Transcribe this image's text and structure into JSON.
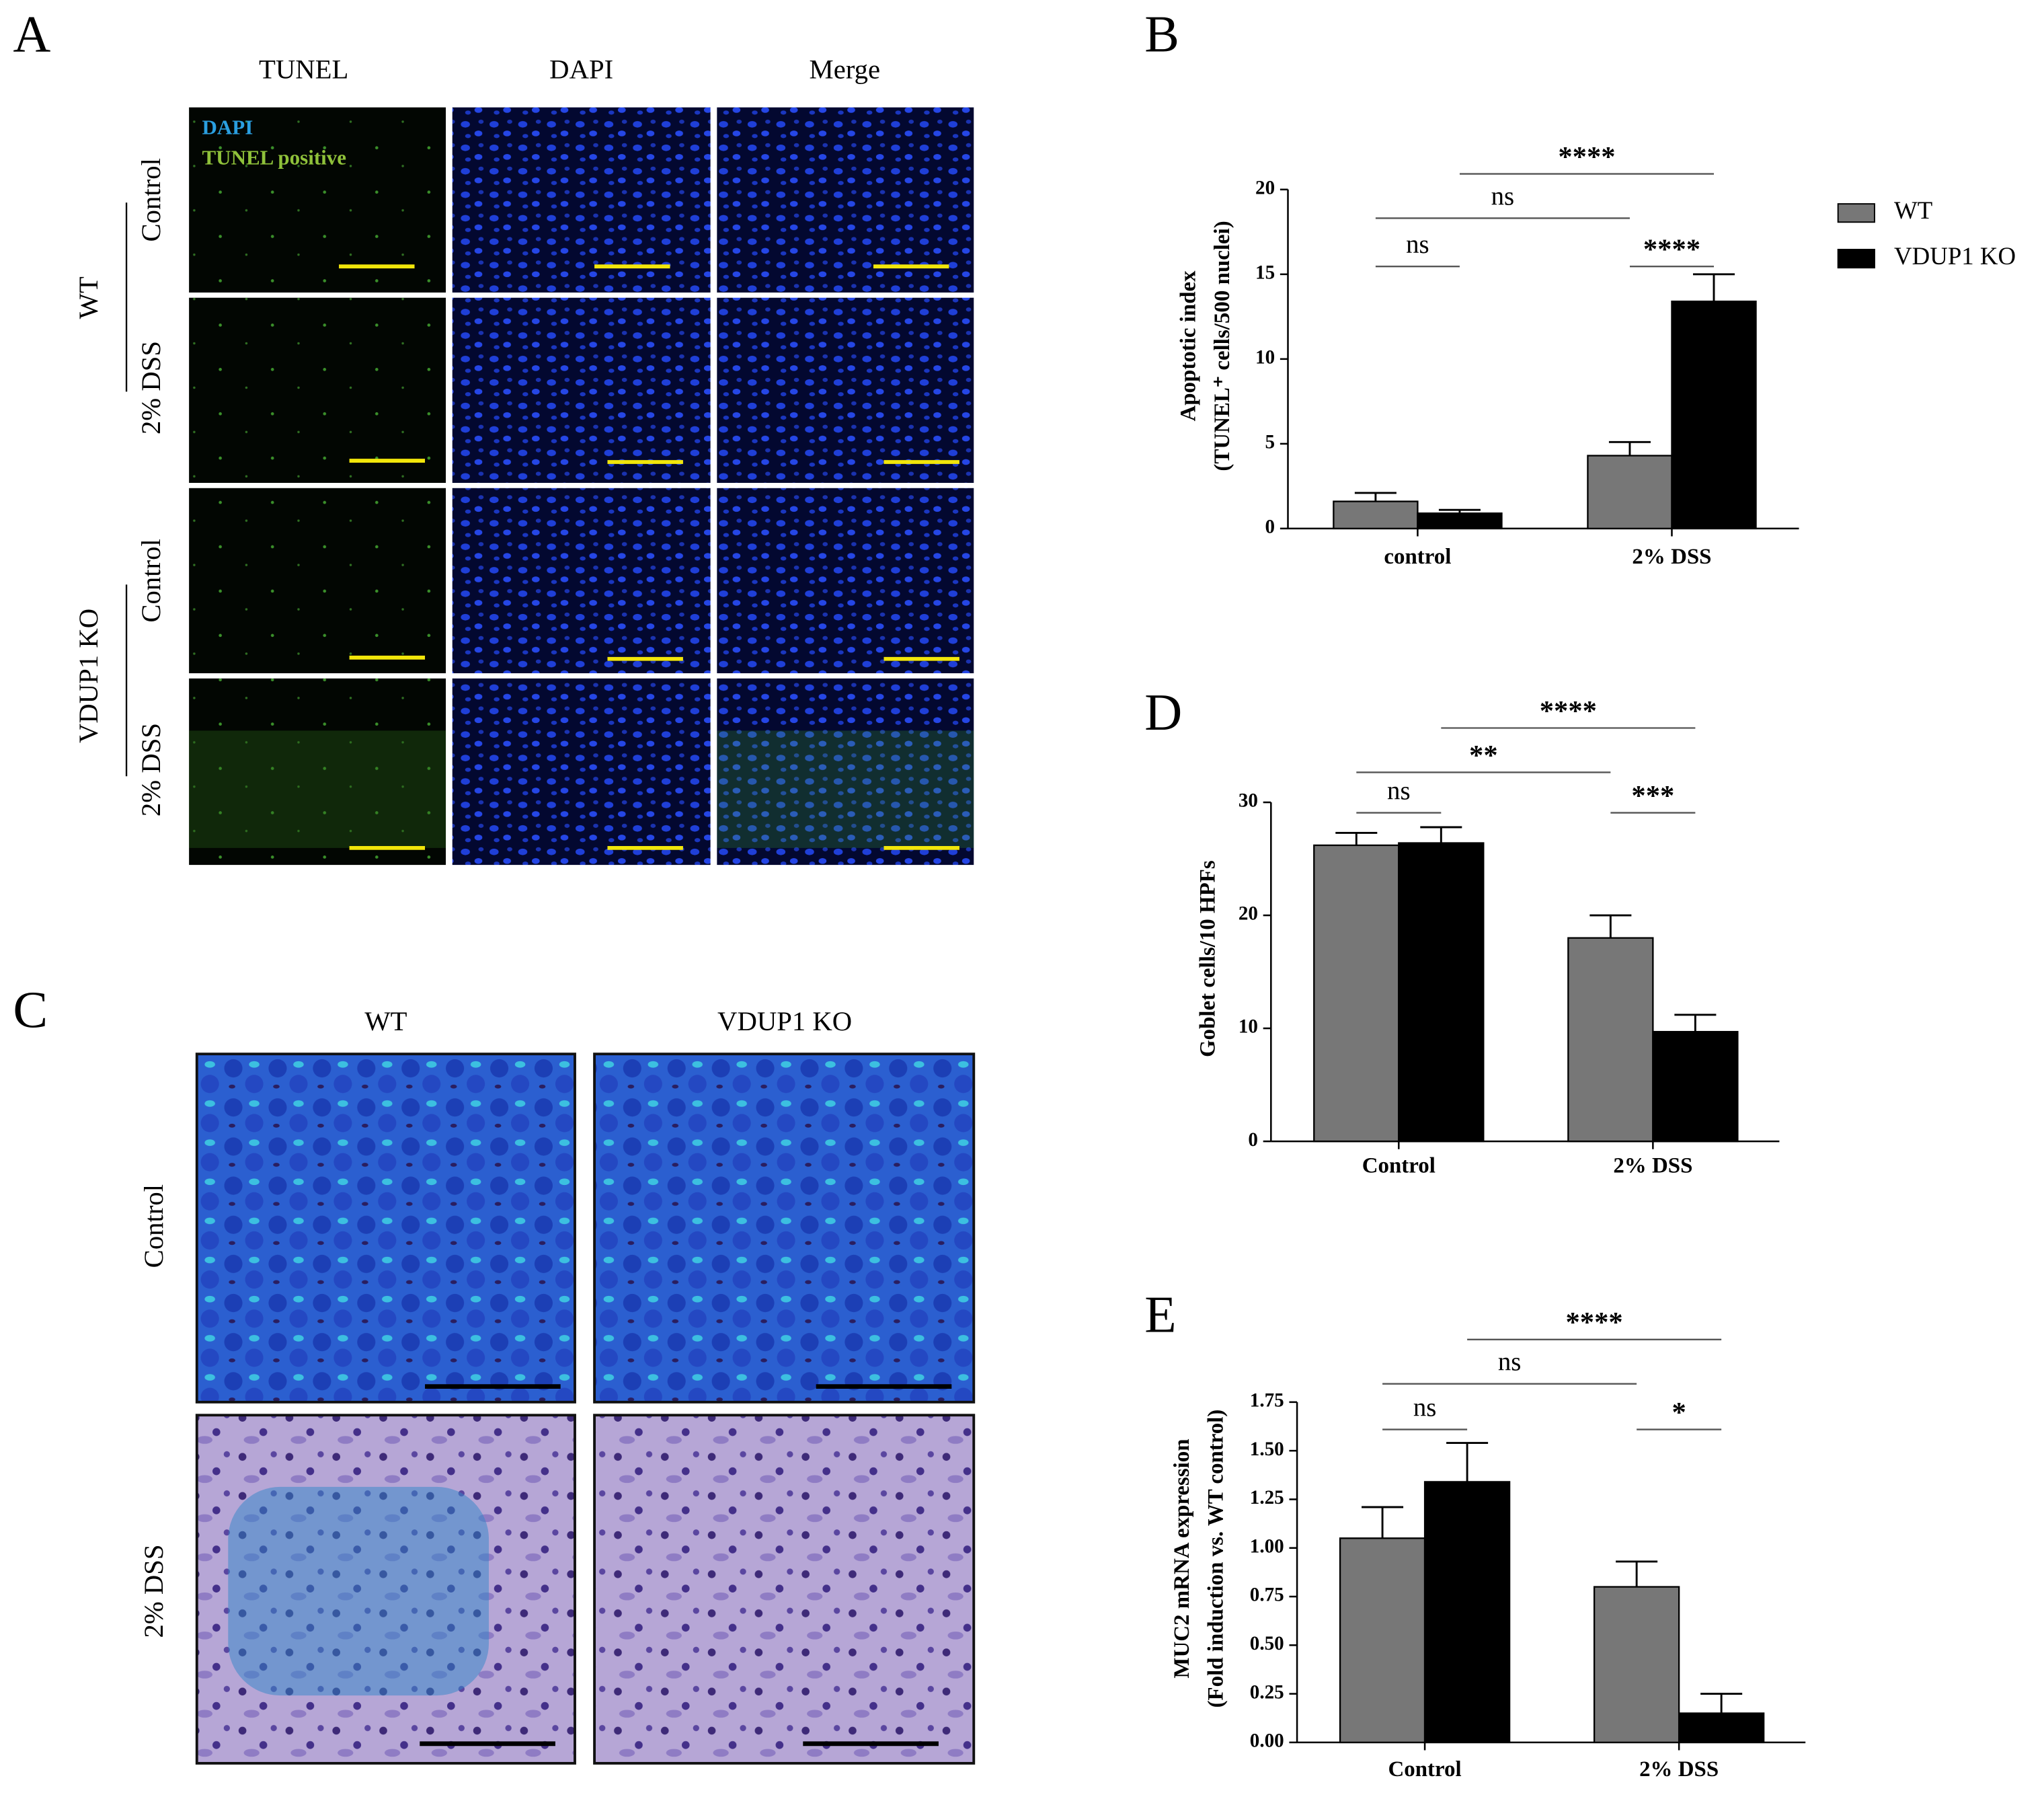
{
  "panel_labels": [
    "A",
    "B",
    "C",
    "D",
    "E"
  ],
  "panel_a": {
    "columns": [
      "TUNEL",
      "DAPI",
      "Merge"
    ],
    "groups": [
      {
        "name": "WT",
        "rows": [
          "Control",
          "2% DSS"
        ]
      },
      {
        "name": "VDUP1 KO",
        "rows": [
          "Control",
          "2% DSS"
        ]
      }
    ],
    "legend": [
      "DAPI",
      "TUNEL positive"
    ]
  },
  "panel_c": {
    "columns": [
      "WT",
      "VDUP1 KO"
    ],
    "rows": [
      "Control",
      "2% DSS"
    ]
  },
  "chart_data": [
    {
      "type": "bar",
      "y_label": [
        "Apoptotic index",
        "(TUNEL⁺ cells/500 nuclei)"
      ],
      "categories": [
        "control",
        "2% DSS"
      ],
      "series": [
        {
          "name": "WT",
          "color": "#777777",
          "values": [
            1.6,
            4.3
          ],
          "errors": [
            0.5,
            0.8
          ]
        },
        {
          "name": "VDUP1 KO",
          "color": "#000000",
          "values": [
            0.9,
            13.4
          ],
          "errors": [
            0.2,
            1.6
          ]
        }
      ],
      "ylim": [
        0,
        20
      ],
      "yticks": [
        0,
        5,
        10,
        15,
        20
      ],
      "legend": "right",
      "annotations": [
        "****",
        "ns",
        "ns",
        "****"
      ]
    },
    {
      "type": "bar",
      "y_label": [
        "Goblet cells/10 HPFs"
      ],
      "categories": [
        "Control",
        "2% DSS"
      ],
      "series": [
        {
          "name": "WT",
          "color": "#777777",
          "values": [
            26.2,
            18.0
          ],
          "errors": [
            1.1,
            2.0
          ]
        },
        {
          "name": "VDUP1 KO",
          "color": "#000000",
          "values": [
            26.4,
            9.7
          ],
          "errors": [
            1.4,
            1.5
          ]
        }
      ],
      "ylim": [
        0,
        30
      ],
      "yticks": [
        0,
        10,
        20,
        30
      ],
      "annotations": [
        "****",
        "**",
        "ns",
        "***"
      ]
    },
    {
      "type": "bar",
      "y_label": [
        "MUC2 mRNA expression",
        "(Fold induction vs. WT control)"
      ],
      "categories": [
        "Control",
        "2% DSS"
      ],
      "series": [
        {
          "name": "WT",
          "color": "#777777",
          "values": [
            1.05,
            0.8
          ],
          "errors": [
            0.16,
            0.13
          ]
        },
        {
          "name": "VDUP1 KO",
          "color": "#000000",
          "values": [
            1.34,
            0.15
          ],
          "errors": [
            0.2,
            0.1
          ]
        }
      ],
      "ylim": [
        0,
        1.75
      ],
      "yticks": [
        {
          "value": 0,
          "label": "0.00"
        },
        {
          "value": 0.25,
          "label": "0.25"
        },
        {
          "value": 0.5,
          "label": "0.50"
        },
        {
          "value": 0.75,
          "label": "0.75"
        },
        {
          "value": 1,
          "label": "1.00"
        },
        {
          "value": 1.25,
          "label": "1.25"
        },
        {
          "value": 1.5,
          "label": "1.50"
        },
        {
          "value": 1.75,
          "label": "1.75"
        }
      ],
      "annotations": [
        "****",
        "ns",
        "ns",
        "*"
      ]
    }
  ]
}
